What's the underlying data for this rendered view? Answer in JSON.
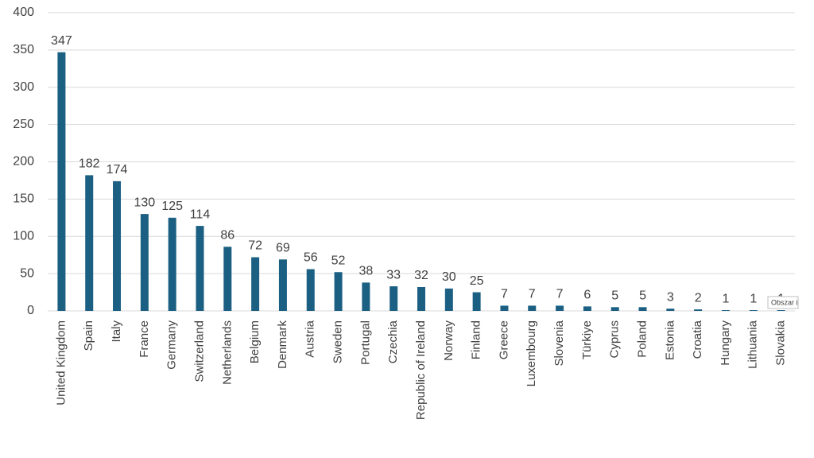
{
  "chart_data": {
    "type": "bar",
    "categories": [
      "United Kingdom",
      "Spain",
      "Italy",
      "France",
      "Germany",
      "Switzerland",
      "Netherlands",
      "Belgium",
      "Denmark",
      "Austria",
      "Sweden",
      "Portugal",
      "Czechia",
      "Republic of Ireland",
      "Norway",
      "Finland",
      "Greece",
      "Luxembourg",
      "Slovenia",
      "Türkiye",
      "Cyprus",
      "Poland",
      "Estonia",
      "Croatia",
      "Hungary",
      "Lithuania",
      "Slovakia"
    ],
    "values": [
      347,
      182,
      174,
      130,
      125,
      114,
      86,
      72,
      69,
      56,
      52,
      38,
      33,
      32,
      30,
      25,
      7,
      7,
      7,
      6,
      5,
      5,
      3,
      2,
      1,
      1,
      1
    ],
    "color": "#1b5f82",
    "ylim": [
      0,
      400
    ],
    "yticks": [
      0,
      50,
      100,
      150,
      200,
      250,
      300,
      350,
      400
    ],
    "grid": true,
    "annotation": "Obszar i"
  }
}
